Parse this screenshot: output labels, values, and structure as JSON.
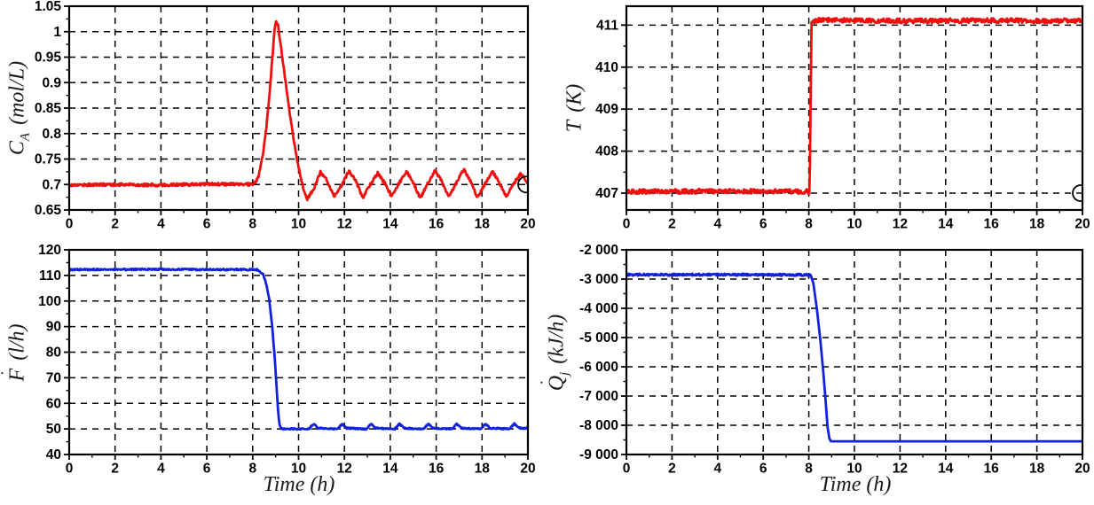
{
  "figure": {
    "background": "#ffffff",
    "grid_color": "#000000",
    "frame_color": "#000000"
  },
  "chart_data": [
    {
      "id": "concentration",
      "type": "line",
      "color": "#ee0f0f",
      "ylabel": {
        "base": "C",
        "sub": "A",
        "dot_char": "",
        "units": "(mol/L)"
      },
      "xlabel": "",
      "xlim": [
        0,
        20
      ],
      "ylim": [
        0.65,
        1.05
      ],
      "xticks": {
        "values": [
          0,
          2,
          4,
          6,
          8,
          10,
          12,
          14,
          16,
          18,
          20
        ],
        "labels": [
          "0",
          "2",
          "4",
          "6",
          "8",
          "10",
          "12",
          "14",
          "16",
          "18",
          "20"
        ]
      },
      "yticks": {
        "values": [
          0.65,
          0.7,
          0.75,
          0.8,
          0.85,
          0.9,
          0.95,
          1,
          1.05
        ],
        "labels": [
          "0.65",
          "0.7",
          "0.75",
          "0.8",
          "0.85",
          "0.9",
          "0.95",
          "1",
          "1.05"
        ]
      },
      "end_marker": {
        "x": 20,
        "y": 0.7
      },
      "series": [
        {
          "noise": 0.0028,
          "points": [
            [
              0,
              0.699
            ],
            [
              2,
              0.7
            ],
            [
              4,
              0.699
            ],
            [
              6,
              0.701
            ],
            [
              8.05,
              0.7
            ]
          ]
        },
        {
          "noise": 0.0028,
          "points": [
            [
              8.05,
              0.7
            ],
            [
              8.25,
              0.714
            ],
            [
              8.45,
              0.76
            ],
            [
              8.6,
              0.812
            ],
            [
              8.72,
              0.872
            ],
            [
              8.85,
              0.945
            ],
            [
              8.95,
              1.0
            ],
            [
              9.02,
              1.022
            ],
            [
              9.1,
              1.013
            ],
            [
              9.22,
              0.975
            ],
            [
              9.35,
              0.93
            ],
            [
              9.5,
              0.878
            ],
            [
              9.65,
              0.828
            ],
            [
              9.8,
              0.785
            ],
            [
              9.95,
              0.745
            ],
            [
              10.1,
              0.712
            ],
            [
              10.25,
              0.684
            ],
            [
              10.38,
              0.672
            ],
            [
              10.65,
              0.69
            ],
            [
              10.95,
              0.724
            ],
            [
              11.2,
              0.71
            ],
            [
              11.55,
              0.676
            ],
            [
              11.9,
              0.7
            ],
            [
              12.2,
              0.727
            ],
            [
              12.5,
              0.706
            ],
            [
              12.8,
              0.674
            ],
            [
              13.1,
              0.698
            ],
            [
              13.45,
              0.722
            ],
            [
              13.75,
              0.703
            ],
            [
              14.05,
              0.676
            ],
            [
              14.35,
              0.7
            ],
            [
              14.7,
              0.726
            ],
            [
              15.0,
              0.704
            ],
            [
              15.3,
              0.673
            ],
            [
              15.6,
              0.699
            ],
            [
              15.95,
              0.728
            ],
            [
              16.25,
              0.705
            ],
            [
              16.55,
              0.675
            ],
            [
              16.85,
              0.7
            ],
            [
              17.2,
              0.73
            ],
            [
              17.5,
              0.707
            ],
            [
              17.8,
              0.674
            ],
            [
              18.1,
              0.699
            ],
            [
              18.45,
              0.726
            ],
            [
              18.75,
              0.704
            ],
            [
              19.05,
              0.676
            ],
            [
              19.35,
              0.7
            ],
            [
              19.7,
              0.722
            ],
            [
              19.9,
              0.71
            ],
            [
              20,
              0.7
            ]
          ]
        }
      ]
    },
    {
      "id": "temperature",
      "type": "line",
      "color": "#ee0f0f",
      "ylabel": {
        "base": "T",
        "sub": "",
        "dot_char": "",
        "units": "(K)"
      },
      "xlabel": "",
      "xlim": [
        0,
        20
      ],
      "ylim": [
        406.6,
        411.45
      ],
      "xticks": {
        "values": [
          0,
          2,
          4,
          6,
          8,
          10,
          12,
          14,
          16,
          18,
          20
        ],
        "labels": [
          "0",
          "2",
          "4",
          "6",
          "8",
          "10",
          "12",
          "14",
          "16",
          "18",
          "20"
        ]
      },
      "yticks": {
        "values": [
          407,
          408,
          409,
          410,
          411
        ],
        "labels": [
          "407",
          "408",
          "409",
          "410",
          "411"
        ]
      },
      "end_marker": {
        "x": 20,
        "y": 407.0
      },
      "series": [
        {
          "noise": 0.055,
          "points": [
            [
              0,
              407.04
            ],
            [
              2,
              407.04
            ],
            [
              4,
              407.05
            ],
            [
              6,
              407.04
            ],
            [
              8.02,
              407.04
            ]
          ]
        },
        {
          "noise": 0.02,
          "points": [
            [
              8.02,
              407.05
            ],
            [
              8.05,
              407.7
            ],
            [
              8.08,
              409.2
            ],
            [
              8.12,
              411.05
            ]
          ]
        },
        {
          "noise": 0.055,
          "points": [
            [
              8.12,
              411.08
            ],
            [
              8.4,
              411.12
            ],
            [
              12,
              411.1
            ],
            [
              16,
              411.11
            ],
            [
              20,
              411.1
            ]
          ]
        }
      ]
    },
    {
      "id": "flow",
      "type": "line",
      "color": "#1122dd",
      "ylabel": {
        "base": "F",
        "sub": "",
        "dot_char": "˙",
        "units": "(l/h)"
      },
      "xlabel": "Time (h)",
      "xlim": [
        0,
        20
      ],
      "ylim": [
        40,
        120
      ],
      "xticks": {
        "values": [
          0,
          2,
          4,
          6,
          8,
          10,
          12,
          14,
          16,
          18,
          20
        ],
        "labels": [
          "0",
          "2",
          "4",
          "6",
          "8",
          "10",
          "12",
          "14",
          "16",
          "18",
          "20"
        ]
      },
      "yticks": {
        "values": [
          40,
          50,
          60,
          70,
          80,
          90,
          100,
          110,
          120
        ],
        "labels": [
          "40",
          "50",
          "60",
          "70",
          "80",
          "90",
          "100",
          "110",
          "120"
        ]
      },
      "series": [
        {
          "noise": 0.3,
          "points": [
            [
              0,
              112.3
            ],
            [
              2,
              112.3
            ],
            [
              4,
              112.4
            ],
            [
              6,
              112.3
            ],
            [
              8.18,
              112.3
            ]
          ]
        },
        {
          "noise": 0.25,
          "points": [
            [
              8.18,
              112.3
            ],
            [
              8.45,
              110.5
            ],
            [
              8.6,
              106.5
            ],
            [
              8.72,
              100.5
            ],
            [
              8.85,
              90.0
            ],
            [
              8.95,
              79.0
            ],
            [
              9.03,
              68.0
            ],
            [
              9.1,
              58.0
            ],
            [
              9.17,
              51.5
            ],
            [
              9.25,
              50.0
            ]
          ]
        },
        {
          "noise": 0.25,
          "points": [
            [
              9.25,
              50
            ],
            [
              10.45,
              50
            ],
            [
              10.65,
              52
            ],
            [
              10.85,
              50.3
            ],
            [
              11.7,
              50
            ],
            [
              11.9,
              52
            ],
            [
              12.1,
              50.3
            ],
            [
              12.95,
              50
            ],
            [
              13.15,
              52
            ],
            [
              13.35,
              50.3
            ],
            [
              14.2,
              50
            ],
            [
              14.4,
              52
            ],
            [
              14.6,
              50.3
            ],
            [
              15.45,
              50
            ],
            [
              15.65,
              52
            ],
            [
              15.85,
              50.3
            ],
            [
              16.7,
              50
            ],
            [
              16.9,
              52
            ],
            [
              17.1,
              50.3
            ],
            [
              17.95,
              50
            ],
            [
              18.15,
              52
            ],
            [
              18.35,
              50.3
            ],
            [
              19.2,
              50
            ],
            [
              19.4,
              52
            ],
            [
              19.6,
              50.5
            ],
            [
              19.85,
              50.2
            ],
            [
              20,
              50.4
            ]
          ]
        }
      ]
    },
    {
      "id": "jacket-heat",
      "type": "line",
      "color": "#1122dd",
      "ylabel": {
        "base": "Q",
        "sub": "j",
        "dot_char": "˙",
        "units": "(kJ/h)"
      },
      "xlabel": "Time (h)",
      "xlim": [
        0,
        20
      ],
      "ylim": [
        -9000,
        -2000
      ],
      "xticks": {
        "values": [
          0,
          2,
          4,
          6,
          8,
          10,
          12,
          14,
          16,
          18,
          20
        ],
        "labels": [
          "0",
          "2",
          "4",
          "6",
          "8",
          "10",
          "12",
          "14",
          "16",
          "18",
          "20"
        ]
      },
      "yticks": {
        "values": [
          -9000,
          -8000,
          -7000,
          -6000,
          -5000,
          -4000,
          -3000,
          -2000
        ],
        "labels": [
          "-9 000",
          "-8 000",
          "-7 000",
          "-6 000",
          "-5 000",
          "-4 000",
          "-3 000",
          "-2 000"
        ]
      },
      "series": [
        {
          "noise": 35,
          "points": [
            [
              0,
              -2850
            ],
            [
              2,
              -2850
            ],
            [
              4,
              -2845
            ],
            [
              6,
              -2855
            ],
            [
              8.08,
              -2855
            ]
          ]
        },
        {
          "noise": 0,
          "points": [
            [
              8.08,
              -2855
            ],
            [
              8.2,
              -3150
            ],
            [
              8.35,
              -4000
            ],
            [
              8.5,
              -5050
            ],
            [
              8.62,
              -6050
            ],
            [
              8.72,
              -7000
            ],
            [
              8.82,
              -8050
            ],
            [
              8.9,
              -8450
            ],
            [
              8.97,
              -8550
            ],
            [
              20,
              -8550
            ]
          ]
        }
      ]
    }
  ]
}
